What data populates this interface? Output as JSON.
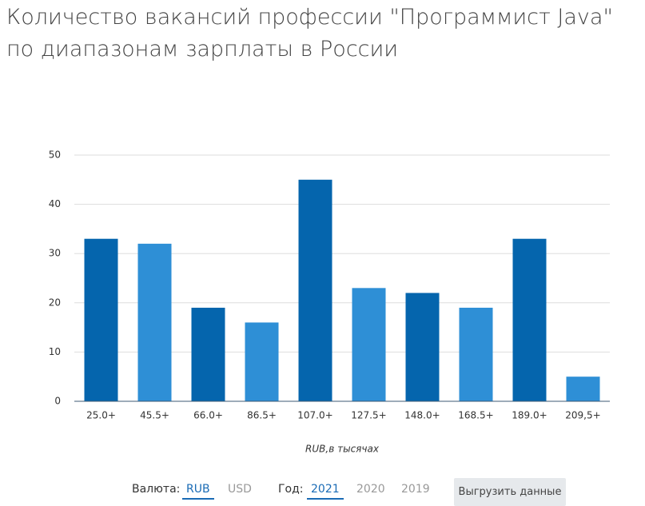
{
  "chart_data": {
    "type": "bar",
    "title": "Количество вакансий профессии \"Программист Java\" по диапазонам зарплаты в России",
    "x_label": "RUB,в тысячах",
    "categories": [
      "25.0+",
      "45.5+",
      "66.0+",
      "86.5+",
      "107.0+",
      "127.5+",
      "148.0+",
      "168.5+",
      "189.0+",
      "209,5+"
    ],
    "values": [
      33,
      32,
      19,
      16,
      45,
      23,
      22,
      19,
      33,
      5
    ],
    "colors": [
      "#0565ad",
      "#2e8fd6",
      "#0565ad",
      "#2e8fd6",
      "#0565ad",
      "#2e8fd6",
      "#0565ad",
      "#2e8fd6",
      "#0565ad",
      "#2e8fd6"
    ],
    "ylim": [
      0,
      50
    ],
    "yticks": [
      0,
      10,
      20,
      30,
      40,
      50
    ],
    "grid": true
  },
  "controls": {
    "currency_label": "Валюта:",
    "currency_options": [
      "RUB",
      "USD"
    ],
    "currency_selected": 0,
    "year_label": "Год:",
    "year_options": [
      "2021",
      "2020",
      "2019"
    ],
    "year_selected": 0,
    "button": "Выгрузить данные"
  }
}
